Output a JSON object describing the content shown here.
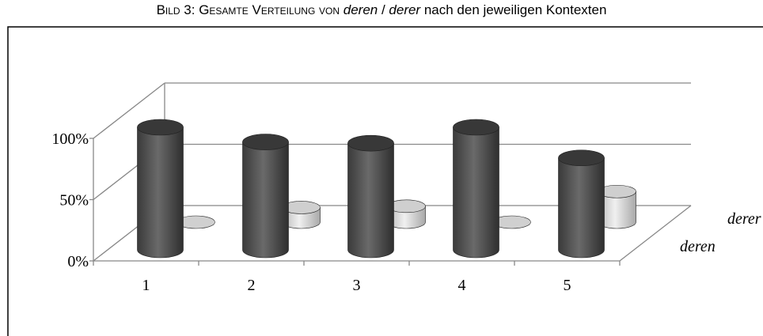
{
  "chart_data": {
    "type": "cylinder3d",
    "title": [
      "Bild 3: Gesamte Verteilung von ",
      "deren",
      " / ",
      "derer",
      " nach den jeweiligen Kontexten"
    ],
    "categories": [
      "1",
      "2",
      "3",
      "4",
      "5"
    ],
    "series": [
      {
        "name": "deren",
        "color": "#4a4a4a",
        "values": [
          100,
          88,
          87,
          100,
          75
        ]
      },
      {
        "name": "derer",
        "color": "#d0d0d0",
        "values": [
          0,
          12,
          13,
          0,
          25
        ]
      }
    ],
    "ylim": [
      0,
      100
    ],
    "yticks": [
      {
        "value": 0,
        "label": "0%"
      },
      {
        "value": 50,
        "label": "50%"
      },
      {
        "value": 100,
        "label": "100%"
      }
    ],
    "grid": true
  }
}
